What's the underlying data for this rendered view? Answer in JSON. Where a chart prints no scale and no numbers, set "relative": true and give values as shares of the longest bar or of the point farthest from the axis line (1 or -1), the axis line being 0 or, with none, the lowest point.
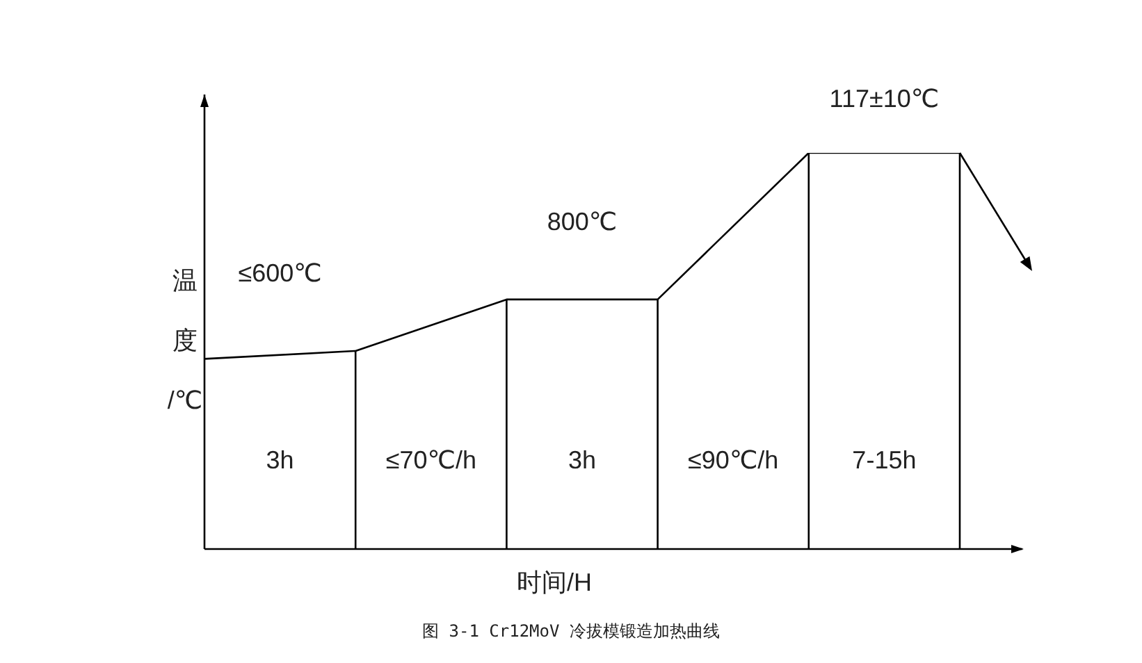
{
  "chart_data": {
    "type": "line",
    "relative": true,
    "categories": [
      null,
      null,
      null,
      null,
      null,
      null
    ],
    "series": [
      {
        "color": "#000000",
        "values": [
          0.48,
          0.5,
          0.63,
          0.63,
          1,
          1
        ]
      }
    ],
    "xlabel": "时间/H",
    "ylabel": "温度/℃",
    "marker": "none",
    "line_style": "solid",
    "legend": false,
    "annotations": [
      "≤600℃",
      "800℃",
      "117±10℃",
      "3h",
      "≤70℃/h",
      "3h",
      "≤90℃/h",
      "7-15h",
      "图 3-1 Cr12MoV 冷拔模锻造加热曲线"
    ]
  }
}
